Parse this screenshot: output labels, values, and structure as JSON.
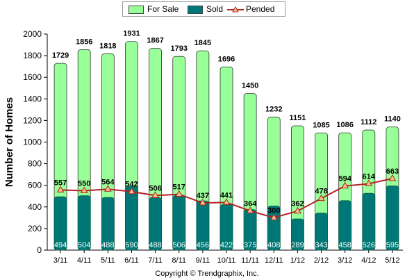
{
  "chart_data": {
    "type": "bar",
    "ylabel": "Number of Homes",
    "xlabel": "",
    "ylim": [
      0,
      2000
    ],
    "yticks": [
      0,
      200,
      400,
      600,
      800,
      1000,
      1200,
      1400,
      1600,
      1800,
      2000
    ],
    "grid": false,
    "legend_position": "top",
    "categories": [
      "3/11",
      "4/11",
      "5/11",
      "6/11",
      "7/11",
      "8/11",
      "9/11",
      "10/11",
      "11/11",
      "12/11",
      "1/12",
      "2/12",
      "3/12",
      "4/12",
      "5/12"
    ],
    "series": [
      {
        "name": "For Sale",
        "kind": "bar",
        "color": "#99ff99",
        "values": [
          1729,
          1856,
          1818,
          1931,
          1867,
          1793,
          1845,
          1696,
          1450,
          1232,
          1151,
          1085,
          1086,
          1112,
          1140
        ]
      },
      {
        "name": "Sold",
        "kind": "bar",
        "color": "#007777",
        "values": [
          494,
          504,
          488,
          590,
          488,
          506,
          456,
          422,
          375,
          408,
          289,
          343,
          458,
          526,
          595
        ]
      },
      {
        "name": "Pended",
        "kind": "line",
        "color": "#b22222",
        "values": [
          557,
          550,
          564,
          542,
          506,
          517,
          437,
          441,
          364,
          300,
          362,
          478,
          594,
          614,
          663
        ]
      }
    ]
  },
  "footer": {
    "copyright": "Copyright © Trendgraphix, Inc."
  }
}
